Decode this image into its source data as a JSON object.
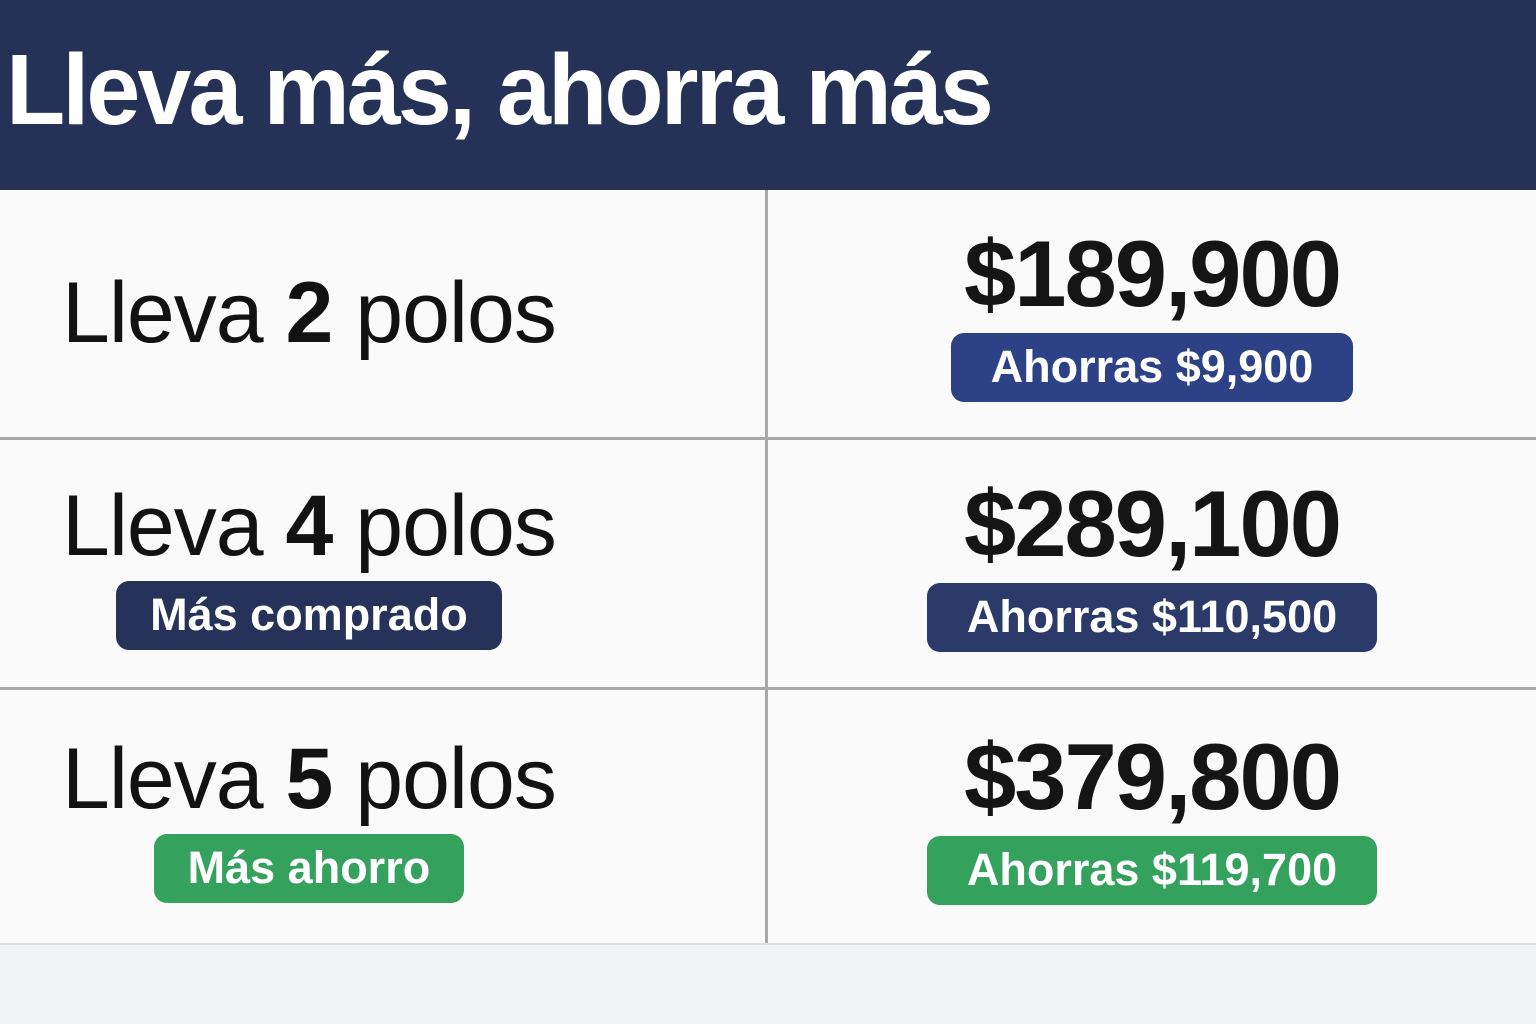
{
  "header": {
    "title": "Lleva más, ahorra más",
    "bg": "#253156",
    "text_color": "#FFFFFF"
  },
  "rows": [
    {
      "label": {
        "prefix": "Lleva ",
        "qty": "2",
        "suffix": " polos"
      },
      "price": "$189,900",
      "savings": {
        "text": "Ahorras $9,900",
        "bg": "#2D4186"
      }
    },
    {
      "label": {
        "prefix": "Lleva ",
        "qty": "4",
        "suffix": " polos"
      },
      "tag": {
        "text": "Más comprado",
        "bg": "#27325A"
      },
      "price": "$289,100",
      "savings": {
        "text": "Ahorras $110,500",
        "bg": "#2B3A68"
      }
    },
    {
      "label": {
        "prefix": "Lleva ",
        "qty": "5",
        "suffix": " polos"
      },
      "tag": {
        "text": "Más ahorro",
        "bg": "#34A15C"
      },
      "price": "$379,800",
      "savings": {
        "text": "Ahorras $119,700",
        "bg": "#34A15C"
      }
    }
  ],
  "colors": {
    "divider": "#A8A8A8",
    "bottom_divider": "#DDDEDF",
    "row_background": "#FAFAFA",
    "footer_background": "#F3F4F5",
    "price_text": "#151515",
    "label_text": "#121212",
    "badge_text": "#FFFFFF"
  }
}
